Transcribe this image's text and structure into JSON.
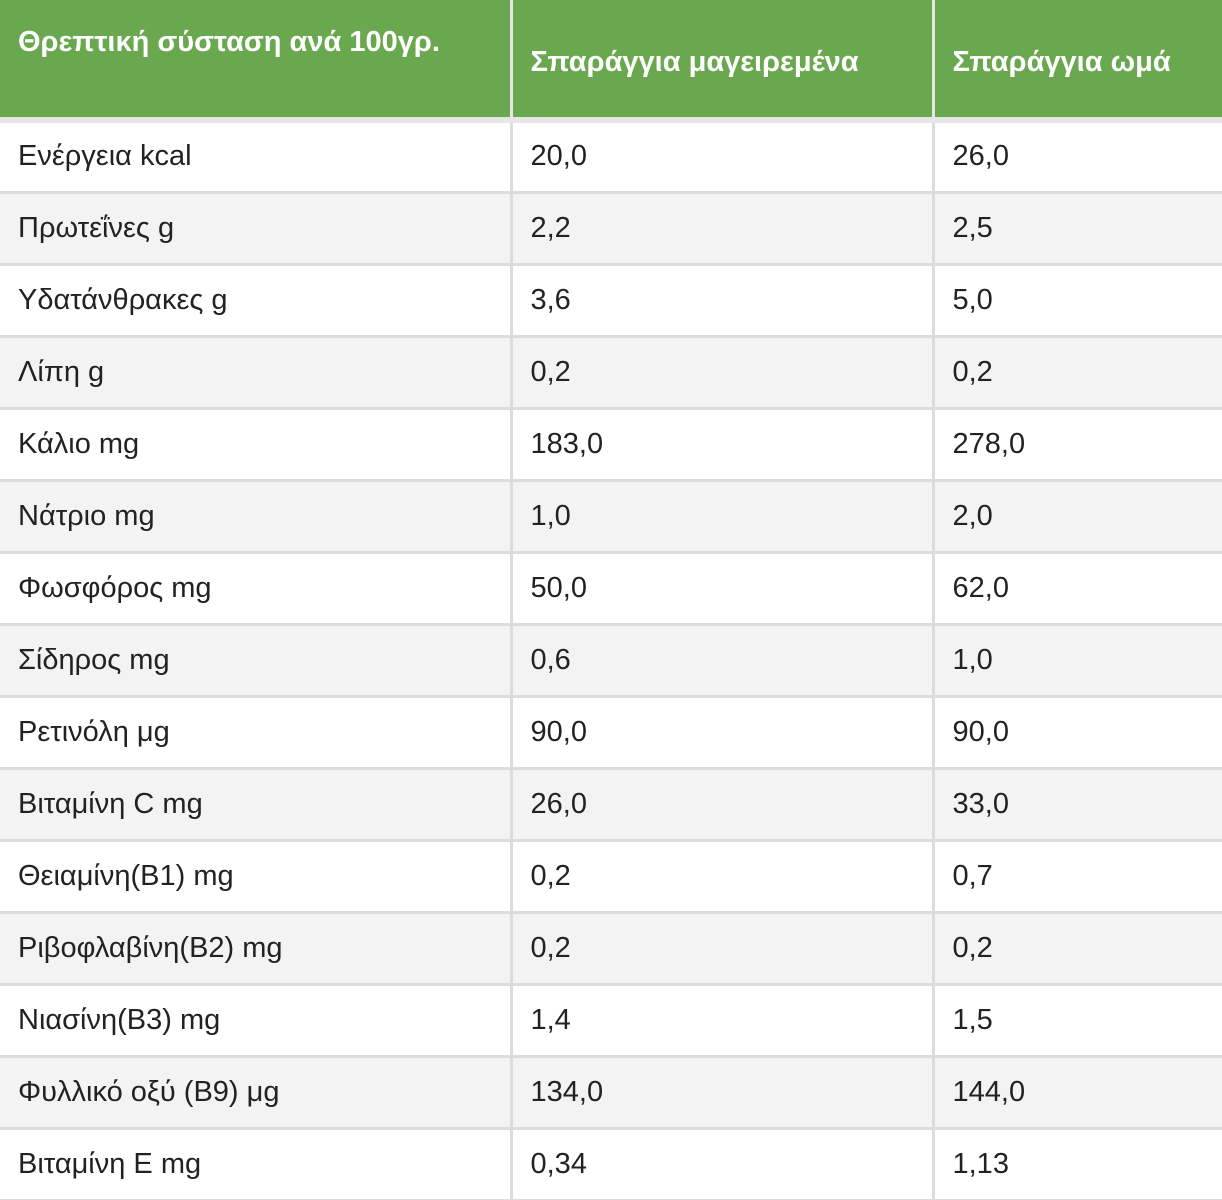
{
  "table": {
    "headers": [
      "Θρεπτική σύσταση ανά 100γρ.",
      "Σπαράγγια μαγειρεμένα",
      "Σπαράγγια ωμά"
    ],
    "rows": [
      [
        "Ενέργεια kcal",
        "20,0",
        "26,0"
      ],
      [
        "Πρωτεΐνες g",
        "2,2",
        "2,5"
      ],
      [
        "Υδατάνθρακες g",
        "3,6",
        "5,0"
      ],
      [
        "Λίπη g",
        "0,2",
        "0,2"
      ],
      [
        "Κάλιο mg",
        "183,0",
        "278,0"
      ],
      [
        "Νάτριο mg",
        "1,0",
        "2,0"
      ],
      [
        "Φωσφόρος mg",
        "50,0",
        "62,0"
      ],
      [
        "Σίδηρος mg",
        "0,6",
        "1,0"
      ],
      [
        "Ρετινόλη μg",
        "90,0",
        "90,0"
      ],
      [
        "Βιταμίνη C mg",
        "26,0",
        "33,0"
      ],
      [
        "Θειαμίνη(B1) mg",
        "0,2",
        "0,7"
      ],
      [
        "Ριβοφλαβίνη(B2) mg",
        "0,2",
        "0,2"
      ],
      [
        "Νιασίνη(B3) mg",
        "1,4",
        "1,5"
      ],
      [
        "Φυλλικό οξύ (B9) μg",
        "134,0",
        "144,0"
      ],
      [
        "Βιταμίνη E mg",
        "0,34",
        "1,13"
      ]
    ]
  },
  "colors": {
    "header_bg": "#6aa84f",
    "header_text": "#ffffff",
    "row_alt_bg": "#f3f3f3",
    "border": "#dcdcdc"
  }
}
